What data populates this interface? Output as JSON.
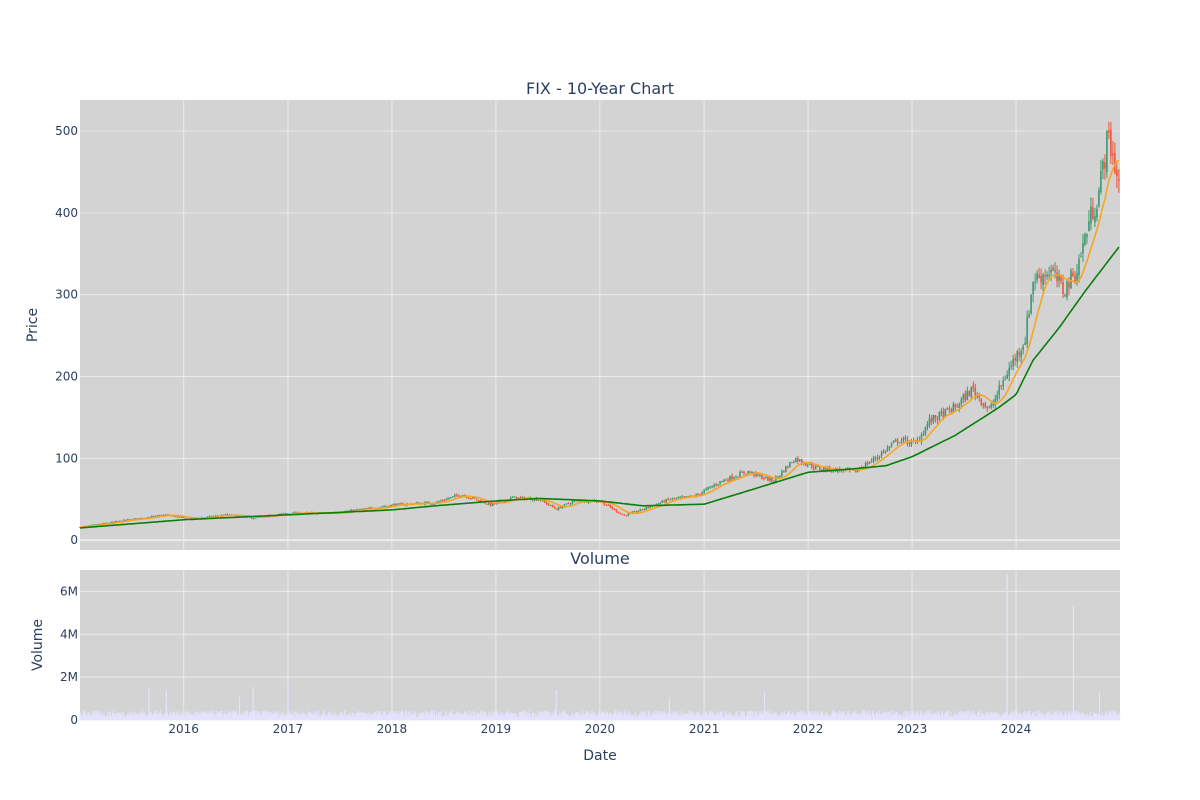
{
  "chart_data": [
    {
      "type": "candlestick",
      "title": "FIX - 10-Year Chart",
      "ylabel": "Price",
      "xlim": [
        "2015-01-02",
        "2024-12-31"
      ],
      "ylim": [
        -12,
        538
      ],
      "yticks": [
        0,
        100,
        200,
        300,
        400,
        500
      ],
      "xticks": [
        "2016",
        "2017",
        "2018",
        "2019",
        "2020",
        "2021",
        "2022",
        "2023",
        "2024"
      ],
      "grid": true,
      "colors": {
        "increasing": "#3d9970",
        "decreasing": "#ef553b",
        "ma_short": "#f5a623",
        "ma_long": "#0a7d0a",
        "background": "#d3d3d3",
        "grid": "#ebebeb"
      },
      "price_anchors": [
        [
          "2015-01-02",
          16
        ],
        [
          "2015-06-01",
          24
        ],
        [
          "2015-11-01",
          31
        ],
        [
          "2016-01-15",
          26
        ],
        [
          "2016-06-01",
          31
        ],
        [
          "2016-09-01",
          27
        ],
        [
          "2017-01-01",
          33
        ],
        [
          "2017-06-01",
          33
        ],
        [
          "2017-10-01",
          38
        ],
        [
          "2018-01-01",
          43
        ],
        [
          "2018-06-01",
          46
        ],
        [
          "2018-09-01",
          56
        ],
        [
          "2018-12-15",
          43
        ],
        [
          "2019-03-01",
          52
        ],
        [
          "2019-06-01",
          50
        ],
        [
          "2019-08-01",
          38
        ],
        [
          "2019-10-01",
          48
        ],
        [
          "2020-01-01",
          48
        ],
        [
          "2020-03-25",
          30
        ],
        [
          "2020-06-01",
          38
        ],
        [
          "2020-09-01",
          50
        ],
        [
          "2020-12-01",
          54
        ],
        [
          "2021-03-01",
          72
        ],
        [
          "2021-06-01",
          84
        ],
        [
          "2021-09-01",
          72
        ],
        [
          "2021-11-15",
          100
        ],
        [
          "2022-02-01",
          88
        ],
        [
          "2022-06-15",
          84
        ],
        [
          "2022-09-01",
          102
        ],
        [
          "2022-11-15",
          123
        ],
        [
          "2023-01-15",
          118
        ],
        [
          "2023-03-01",
          145
        ],
        [
          "2023-06-01",
          162
        ],
        [
          "2023-08-01",
          185
        ],
        [
          "2023-10-01",
          158
        ],
        [
          "2023-12-01",
          205
        ],
        [
          "2024-02-01",
          245
        ],
        [
          "2024-03-01",
          318
        ],
        [
          "2024-05-01",
          330
        ],
        [
          "2024-06-15",
          305
        ],
        [
          "2024-08-01",
          330
        ],
        [
          "2024-09-15",
          392
        ],
        [
          "2024-10-15",
          420
        ],
        [
          "2024-11-20",
          495
        ],
        [
          "2024-12-31",
          430
        ]
      ],
      "ma_long_anchors": [
        [
          "2015-01-02",
          15
        ],
        [
          "2016-01-01",
          25
        ],
        [
          "2017-01-01",
          31
        ],
        [
          "2018-01-01",
          37
        ],
        [
          "2018-06-01",
          42
        ],
        [
          "2019-01-01",
          48
        ],
        [
          "2019-06-01",
          51
        ],
        [
          "2020-01-01",
          48
        ],
        [
          "2020-06-01",
          42
        ],
        [
          "2021-01-01",
          44
        ],
        [
          "2021-06-01",
          60
        ],
        [
          "2022-01-01",
          83
        ],
        [
          "2022-06-01",
          87
        ],
        [
          "2022-10-01",
          91
        ],
        [
          "2023-01-01",
          102
        ],
        [
          "2023-06-01",
          128
        ],
        [
          "2023-11-01",
          162
        ],
        [
          "2024-01-01",
          178
        ],
        [
          "2024-03-01",
          220
        ],
        [
          "2024-06-01",
          260
        ],
        [
          "2024-09-01",
          305
        ],
        [
          "2024-12-31",
          360
        ]
      ]
    },
    {
      "type": "bar",
      "title": "Volume",
      "xlabel": "Date",
      "ylabel": "Volume",
      "ylim": [
        0,
        7000000
      ],
      "yticks": [
        0,
        2000000,
        4000000,
        6000000
      ],
      "ytick_labels": [
        "0",
        "2M",
        "4M",
        "6M"
      ],
      "xticks": [
        "2016",
        "2017",
        "2018",
        "2019",
        "2020",
        "2021",
        "2022",
        "2023",
        "2024"
      ],
      "grid": true,
      "colors": {
        "bar": "#e3e3ff",
        "background": "#d3d3d3",
        "grid": "#ebebeb"
      },
      "typical_volume": 300000,
      "spikes": [
        [
          "2015-09-01",
          1500000
        ],
        [
          "2015-11-01",
          1350000
        ],
        [
          "2016-07-15",
          1100000
        ],
        [
          "2016-09-01",
          1550000
        ],
        [
          "2017-01-01",
          1750000
        ],
        [
          "2019-08-01",
          1400000
        ],
        [
          "2020-09-01",
          1050000
        ],
        [
          "2021-08-01",
          1350000
        ],
        [
          "2023-12-01",
          6800000
        ],
        [
          "2024-07-20",
          5300000
        ],
        [
          "2024-10-20",
          1300000
        ]
      ]
    }
  ]
}
